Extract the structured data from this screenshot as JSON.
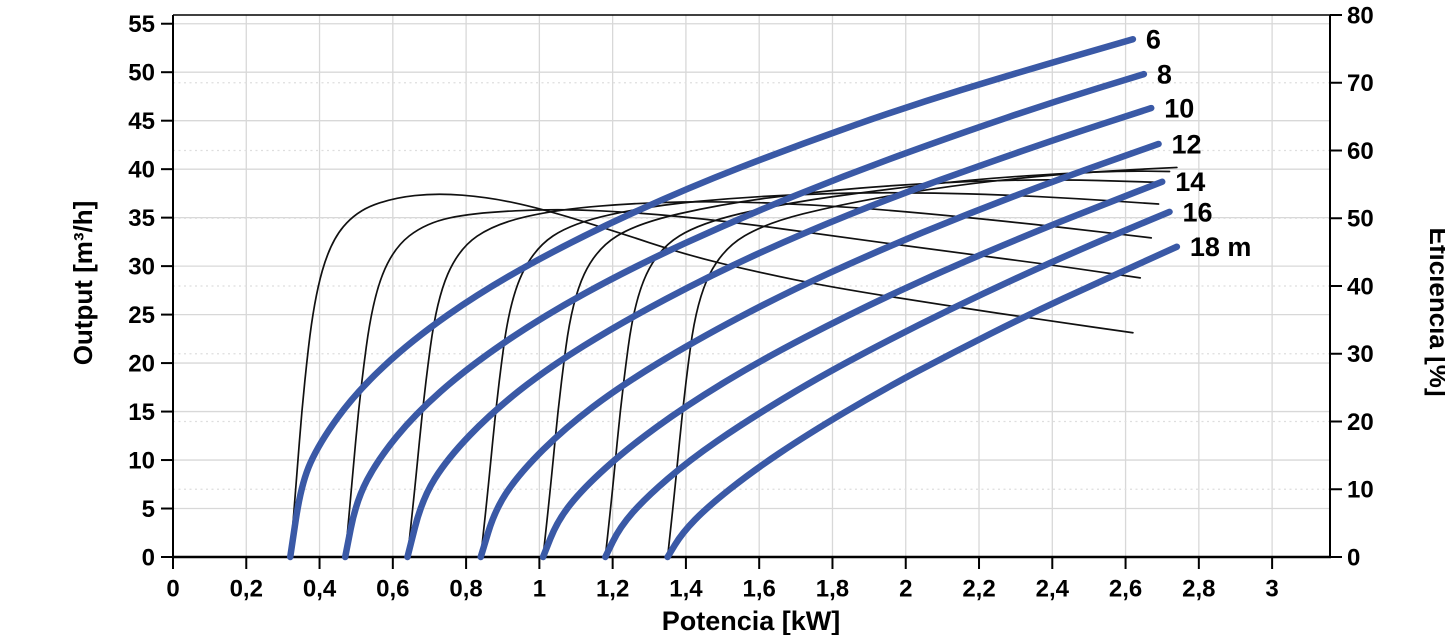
{
  "chart_data": {
    "type": "line",
    "title": "",
    "xlabel": "Potencia [kW]",
    "ylabel_left": "Output [m³/h]",
    "ylabel_right": "Eficiencia [%]",
    "grid": {
      "vertical": "solid",
      "horizontal_left": "solid",
      "horizontal_right": "dotted"
    },
    "legend_position": "curve-end-labels",
    "colors": {
      "head_curve": "#3A59A6",
      "efficiency_curve": "#111111",
      "grid_solid": "#d8d8d8",
      "grid_dotted": "#dedede",
      "frame": "#000000"
    },
    "x_axis": {
      "min": 0,
      "max": 3.158,
      "tick_values": [
        0,
        0.2,
        0.4,
        0.6,
        0.8,
        1,
        1.2,
        1.4,
        1.6,
        1.8,
        2,
        2.2,
        2.4,
        2.6,
        2.8,
        3
      ],
      "tick_labels": [
        "0",
        "0,2",
        "0,4",
        "0,6",
        "0,8",
        "1",
        "1,2",
        "1,4",
        "1,6",
        "1,8",
        "2",
        "2,2",
        "2,4",
        "2,6",
        "2,8",
        "3"
      ]
    },
    "y_axis_left": {
      "min": 0,
      "max": 55.9,
      "tick_values": [
        0,
        5,
        10,
        15,
        20,
        25,
        30,
        35,
        40,
        45,
        50,
        55
      ],
      "tick_labels": [
        "0",
        "5",
        "10",
        "15",
        "20",
        "25",
        "30",
        "35",
        "40",
        "45",
        "50",
        "55"
      ]
    },
    "y_axis_right": {
      "min": 0,
      "max": 80,
      "tick_values": [
        0,
        10,
        20,
        30,
        40,
        50,
        60,
        70,
        80
      ],
      "tick_labels": [
        "0",
        "10",
        "20",
        "30",
        "40",
        "50",
        "60",
        "70",
        "80"
      ]
    },
    "head_curves": [
      {
        "label": "6",
        "head_m": 6,
        "points": [
          [
            0.32,
            0
          ],
          [
            0.35,
            7.6
          ],
          [
            0.4,
            11.8
          ],
          [
            0.5,
            17.0
          ],
          [
            0.65,
            22.3
          ],
          [
            0.85,
            27.6
          ],
          [
            1.1,
            32.8
          ],
          [
            1.4,
            38.0
          ],
          [
            1.7,
            42.4
          ],
          [
            2.0,
            46.4
          ],
          [
            2.3,
            49.9
          ],
          [
            2.62,
            53.4
          ]
        ]
      },
      {
        "label": "8",
        "head_m": 8,
        "points": [
          [
            0.47,
            0
          ],
          [
            0.5,
            5.8
          ],
          [
            0.56,
            10.1
          ],
          [
            0.66,
            14.7
          ],
          [
            0.8,
            19.4
          ],
          [
            1.0,
            24.6
          ],
          [
            1.25,
            29.8
          ],
          [
            1.55,
            35.0
          ],
          [
            1.85,
            39.6
          ],
          [
            2.15,
            43.7
          ],
          [
            2.4,
            46.9
          ],
          [
            2.65,
            49.8
          ]
        ]
      },
      {
        "label": "10",
        "head_m": 10,
        "points": [
          [
            0.64,
            0
          ],
          [
            0.68,
            6.0
          ],
          [
            0.75,
            10.2
          ],
          [
            0.87,
            14.9
          ],
          [
            1.02,
            19.4
          ],
          [
            1.22,
            24.1
          ],
          [
            1.47,
            29.1
          ],
          [
            1.72,
            33.4
          ],
          [
            1.97,
            37.2
          ],
          [
            2.22,
            40.6
          ],
          [
            2.45,
            43.6
          ],
          [
            2.67,
            46.3
          ]
        ]
      },
      {
        "label": "12",
        "head_m": 12,
        "points": [
          [
            0.84,
            0
          ],
          [
            0.88,
            5.0
          ],
          [
            0.95,
            8.8
          ],
          [
            1.07,
            13.3
          ],
          [
            1.22,
            17.6
          ],
          [
            1.42,
            22.2
          ],
          [
            1.67,
            27.2
          ],
          [
            1.92,
            31.5
          ],
          [
            2.17,
            35.4
          ],
          [
            2.42,
            39.0
          ],
          [
            2.69,
            42.6
          ]
        ]
      },
      {
        "label": "14",
        "head_m": 14,
        "points": [
          [
            1.01,
            0
          ],
          [
            1.05,
            3.8
          ],
          [
            1.12,
            7.1
          ],
          [
            1.24,
            11.2
          ],
          [
            1.4,
            15.6
          ],
          [
            1.6,
            20.2
          ],
          [
            1.85,
            25.1
          ],
          [
            2.1,
            29.5
          ],
          [
            2.35,
            33.5
          ],
          [
            2.55,
            36.5
          ],
          [
            2.7,
            38.7
          ]
        ]
      },
      {
        "label": "16",
        "head_m": 16,
        "points": [
          [
            1.18,
            0
          ],
          [
            1.22,
            3.1
          ],
          [
            1.29,
            6.1
          ],
          [
            1.41,
            10.0
          ],
          [
            1.56,
            13.9
          ],
          [
            1.76,
            18.5
          ],
          [
            2.0,
            23.3
          ],
          [
            2.24,
            27.7
          ],
          [
            2.48,
            31.8
          ],
          [
            2.72,
            35.6
          ]
        ]
      },
      {
        "label": "18 m",
        "head_m": 18,
        "points": [
          [
            1.35,
            0
          ],
          [
            1.39,
            2.5
          ],
          [
            1.46,
            5.2
          ],
          [
            1.58,
            8.8
          ],
          [
            1.73,
            12.6
          ],
          [
            1.93,
            17.1
          ],
          [
            2.13,
            21.1
          ],
          [
            2.33,
            24.9
          ],
          [
            2.53,
            28.4
          ],
          [
            2.74,
            32.0
          ]
        ]
      }
    ],
    "efficiency_curves": [
      {
        "label": "6",
        "points": [
          [
            0.32,
            0
          ],
          [
            0.335,
            10
          ],
          [
            0.355,
            24
          ],
          [
            0.385,
            38
          ],
          [
            0.43,
            46.5
          ],
          [
            0.5,
            51.0
          ],
          [
            0.6,
            53.0
          ],
          [
            0.72,
            53.7
          ],
          [
            0.86,
            53.1
          ],
          [
            1.0,
            51.5
          ],
          [
            1.2,
            48.2
          ],
          [
            1.4,
            44.6
          ],
          [
            1.6,
            42.0
          ],
          [
            1.8,
            39.8
          ],
          [
            2.1,
            37.2
          ],
          [
            2.4,
            34.8
          ],
          [
            2.62,
            33.1
          ]
        ]
      },
      {
        "label": "8",
        "points": [
          [
            0.47,
            0
          ],
          [
            0.487,
            10
          ],
          [
            0.51,
            24
          ],
          [
            0.545,
            38
          ],
          [
            0.6,
            45.5
          ],
          [
            0.69,
            49.3
          ],
          [
            0.82,
            50.8
          ],
          [
            1.05,
            51.4
          ],
          [
            1.28,
            50.8
          ],
          [
            1.52,
            49.5
          ],
          [
            1.8,
            47.4
          ],
          [
            2.1,
            45.2
          ],
          [
            2.4,
            43.1
          ],
          [
            2.64,
            41.2
          ]
        ]
      },
      {
        "label": "10",
        "points": [
          [
            0.64,
            0
          ],
          [
            0.66,
            10
          ],
          [
            0.685,
            24
          ],
          [
            0.72,
            38
          ],
          [
            0.78,
            45.5
          ],
          [
            0.88,
            49.2
          ],
          [
            1.05,
            51.3
          ],
          [
            1.28,
            52.3
          ],
          [
            1.5,
            52.5
          ],
          [
            1.75,
            52.0
          ],
          [
            2.0,
            51.0
          ],
          [
            2.3,
            49.4
          ],
          [
            2.5,
            48.2
          ],
          [
            2.67,
            47.1
          ]
        ]
      },
      {
        "label": "12",
        "points": [
          [
            0.84,
            0
          ],
          [
            0.86,
            10
          ],
          [
            0.885,
            24
          ],
          [
            0.92,
            38
          ],
          [
            0.985,
            45.5
          ],
          [
            1.09,
            49.3
          ],
          [
            1.3,
            51.8
          ],
          [
            1.55,
            53.1
          ],
          [
            1.8,
            53.7
          ],
          [
            2.0,
            53.8
          ],
          [
            2.25,
            53.5
          ],
          [
            2.47,
            52.9
          ],
          [
            2.69,
            52.1
          ]
        ]
      },
      {
        "label": "14",
        "points": [
          [
            1.01,
            0
          ],
          [
            1.03,
            10
          ],
          [
            1.055,
            24
          ],
          [
            1.09,
            38
          ],
          [
            1.155,
            45.5
          ],
          [
            1.27,
            49.3
          ],
          [
            1.5,
            52.1
          ],
          [
            1.75,
            53.9
          ],
          [
            2.0,
            55.0
          ],
          [
            2.25,
            55.6
          ],
          [
            2.45,
            55.7
          ],
          [
            2.69,
            55.3
          ]
        ]
      },
      {
        "label": "16",
        "points": [
          [
            1.18,
            0
          ],
          [
            1.2,
            10
          ],
          [
            1.225,
            24
          ],
          [
            1.26,
            38
          ],
          [
            1.325,
            45.5
          ],
          [
            1.44,
            49.3
          ],
          [
            1.66,
            52.1
          ],
          [
            1.92,
            54.1
          ],
          [
            2.18,
            55.7
          ],
          [
            2.42,
            56.6
          ],
          [
            2.6,
            57.0
          ],
          [
            2.72,
            56.9
          ]
        ]
      },
      {
        "label": "18",
        "points": [
          [
            1.35,
            0
          ],
          [
            1.37,
            10
          ],
          [
            1.395,
            24
          ],
          [
            1.43,
            38
          ],
          [
            1.5,
            45.5
          ],
          [
            1.62,
            49.3
          ],
          [
            1.82,
            52.0
          ],
          [
            2.06,
            54.3
          ],
          [
            2.3,
            55.9
          ],
          [
            2.52,
            56.9
          ],
          [
            2.74,
            57.5
          ]
        ]
      }
    ]
  }
}
